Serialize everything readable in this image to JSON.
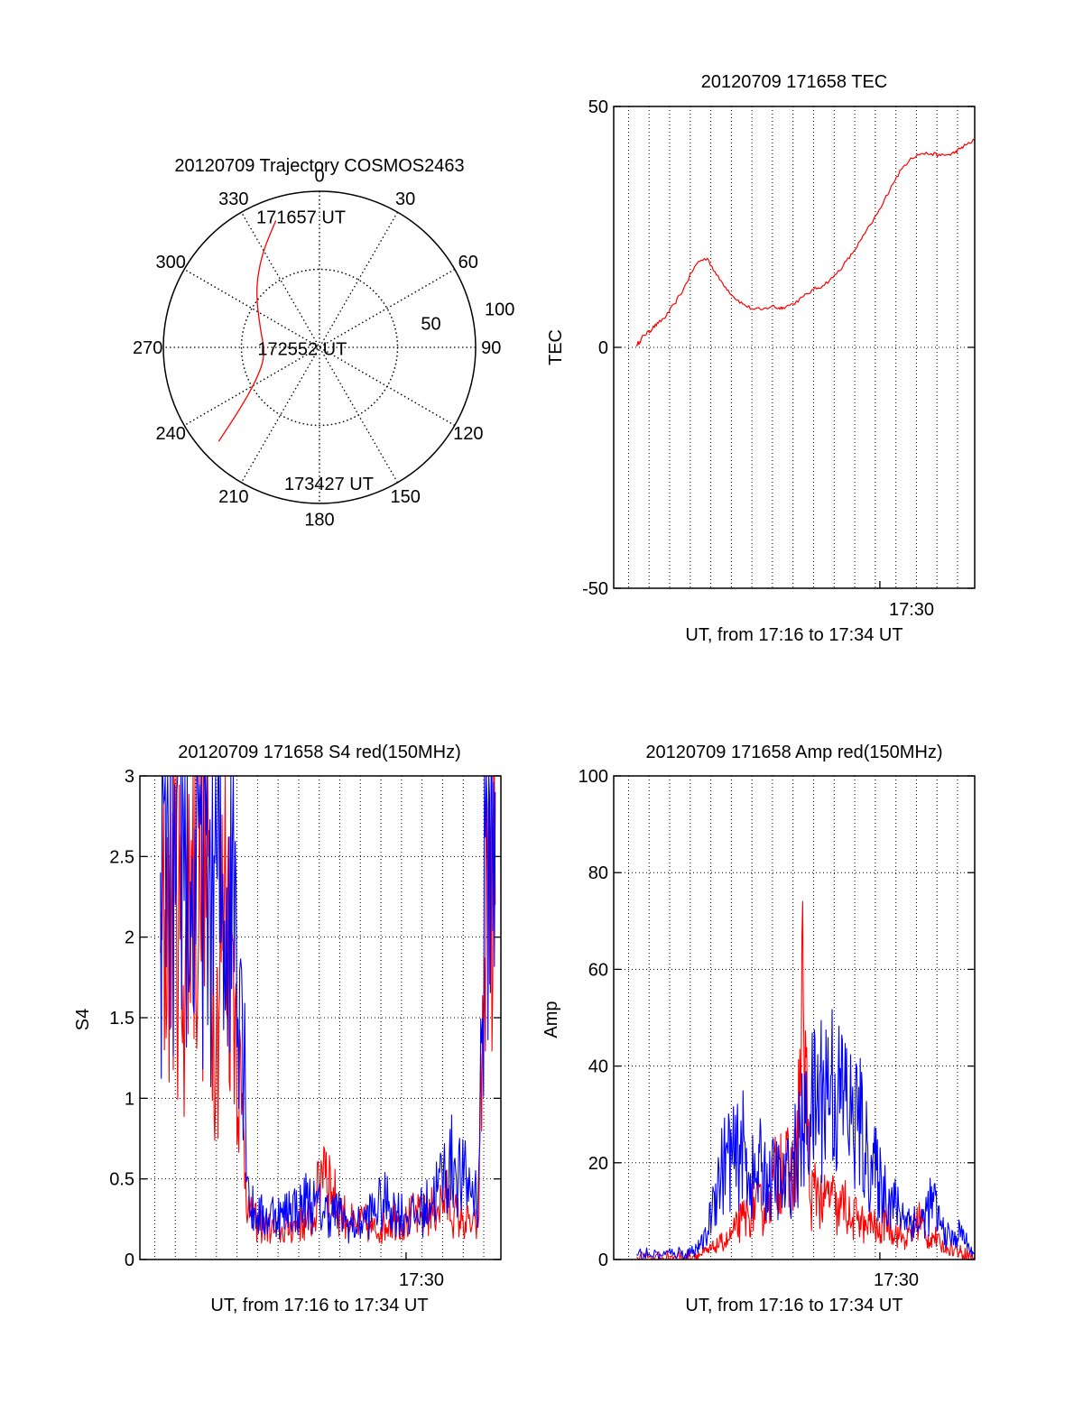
{
  "colors": {
    "red": "#ff0000",
    "blue": "#0000ff",
    "axis": "#000000",
    "grid": "#000000"
  },
  "chart_data": [
    {
      "id": "trajectory",
      "type": "polar",
      "title": "20120709 Trajectory COSMOS2463",
      "azimuth_labels": [
        "0",
        "30",
        "60",
        "90",
        "120",
        "150",
        "180",
        "210",
        "240",
        "270",
        "300",
        "330"
      ],
      "radial_labels": [
        {
          "elevation": 50,
          "label": "50"
        },
        {
          "elevation": 100,
          "label": "100"
        }
      ],
      "rings_elevation": [
        0,
        50
      ],
      "r_max": 100,
      "track": {
        "azimuth": [
          341,
          328,
          312,
          288,
          262,
          243,
          232,
          227
        ],
        "radius": [
          85.9,
          70,
          55,
          40,
          35,
          45,
          65,
          88.2
        ]
      },
      "point_labels": [
        {
          "text": "171657 UT",
          "azimuth": 352,
          "radius": 85
        },
        {
          "text": "172552 UT",
          "azimuth": 268,
          "radius": 5
        },
        {
          "text": "173427 UT",
          "azimuth": 176,
          "radius": 87
        }
      ]
    },
    {
      "id": "tec",
      "type": "line",
      "title": "20120709 171658 TEC",
      "ylabel": "TEC",
      "xlabel": "UT, from 17:16 to 17:34 UT",
      "xlim": [
        17.267,
        17.583
      ],
      "ylim": [
        -50,
        50
      ],
      "yticks": [
        -50,
        0,
        50
      ],
      "xtick_label": {
        "value": 17.5,
        "label": "17:30"
      },
      "vgrid_x": [
        17.28,
        17.298,
        17.316,
        17.334,
        17.352,
        17.37,
        17.388,
        17.406,
        17.424,
        17.442,
        17.46,
        17.478,
        17.496,
        17.514,
        17.532,
        17.55,
        17.568
      ],
      "series": [
        {
          "color": "#ff0000",
          "x": [
            17.287,
            17.29,
            17.293,
            17.298,
            17.301,
            17.306,
            17.313,
            17.32,
            17.328,
            17.335,
            17.341,
            17.349,
            17.357,
            17.365,
            17.372,
            17.38,
            17.388,
            17.397,
            17.406,
            17.411,
            17.415,
            17.424,
            17.433,
            17.442,
            17.45,
            17.459,
            17.468,
            17.476,
            17.484,
            17.492,
            17.501,
            17.51,
            17.519,
            17.527,
            17.536,
            17.545,
            17.553,
            17.561,
            17.566,
            17.57,
            17.575,
            17.583
          ],
          "y": [
            0.5,
            1.2,
            2.5,
            3.2,
            4,
            5,
            6.5,
            9,
            12,
            15.5,
            17.8,
            18.5,
            15,
            12.5,
            10.5,
            9,
            8,
            7.8,
            8.6,
            8.1,
            8.3,
            9,
            10.5,
            12,
            12.8,
            14.5,
            17,
            19.5,
            22.5,
            25.5,
            29,
            33.5,
            37,
            39.3,
            40.2,
            40.2,
            39.8,
            40,
            40.5,
            41.2,
            42,
            43
          ]
        }
      ]
    },
    {
      "id": "s4",
      "type": "line",
      "title": "20120709 171658 S4 red(150MHz)",
      "ylabel": "S4",
      "xlabel": "UT, from 17:16 to 17:34 UT",
      "xlim": [
        17.267,
        17.583
      ],
      "ylim": [
        0,
        3
      ],
      "yticks": [
        0,
        0.5,
        1,
        1.5,
        2,
        2.5,
        3
      ],
      "ytick_labels": [
        "0",
        "0.5",
        "1",
        "1.5",
        "2",
        "2.5",
        "3"
      ],
      "xtick_label": {
        "value": 17.5,
        "label": "17:30"
      },
      "vgrid_x": [
        17.28,
        17.298,
        17.316,
        17.334,
        17.352,
        17.37,
        17.388,
        17.406,
        17.424,
        17.442,
        17.46,
        17.478,
        17.496,
        17.514,
        17.532,
        17.55,
        17.568
      ],
      "series": [
        {
          "color": "#ff0000",
          "x": [
            17.285,
            17.292,
            17.298,
            17.305,
            17.312,
            17.32,
            17.327,
            17.334,
            17.341,
            17.348,
            17.356,
            17.363,
            17.37,
            17.377,
            17.385,
            17.392,
            17.399,
            17.406,
            17.413,
            17.42,
            17.428,
            17.435,
            17.442,
            17.449,
            17.456,
            17.464,
            17.471,
            17.478,
            17.485,
            17.492,
            17.499,
            17.507,
            17.514,
            17.521,
            17.528,
            17.535,
            17.542,
            17.549,
            17.556,
            17.563,
            17.571,
            17.578
          ],
          "y": [
            1.9,
            2.1,
            2.4,
            1.7,
            2.6,
            2.2,
            2.5,
            1.4,
            2.3,
            2.0,
            0.9,
            0.26,
            0.22,
            0.2,
            0.18,
            0.17,
            0.2,
            0.22,
            0.24,
            0.26,
            0.7,
            0.42,
            0.3,
            0.25,
            0.2,
            0.23,
            0.18,
            0.2,
            0.24,
            0.27,
            0.22,
            0.28,
            0.25,
            0.3,
            0.33,
            0.38,
            0.28,
            0.24,
            0.22,
            0.2,
            2.5,
            2.2
          ]
        },
        {
          "color": "#0000ff",
          "x": [
            17.285,
            17.292,
            17.298,
            17.305,
            17.312,
            17.32,
            17.327,
            17.334,
            17.341,
            17.348,
            17.356,
            17.363,
            17.37,
            17.377,
            17.385,
            17.392,
            17.399,
            17.406,
            17.413,
            17.42,
            17.428,
            17.435,
            17.442,
            17.449,
            17.456,
            17.464,
            17.471,
            17.478,
            17.485,
            17.492,
            17.499,
            17.507,
            17.514,
            17.521,
            17.528,
            17.535,
            17.542,
            17.549,
            17.556,
            17.563,
            17.571,
            17.578
          ],
          "y": [
            2.4,
            2.6,
            2.2,
            2.8,
            2.0,
            2.7,
            2.3,
            2.5,
            2.1,
            2.6,
            1.8,
            0.32,
            0.28,
            0.25,
            0.3,
            0.26,
            0.35,
            0.3,
            0.38,
            0.33,
            0.3,
            0.29,
            0.28,
            0.22,
            0.2,
            0.25,
            0.3,
            0.34,
            0.36,
            0.3,
            0.28,
            0.26,
            0.3,
            0.35,
            0.45,
            0.55,
            0.6,
            0.5,
            0.45,
            0.4,
            2.8,
            2.9
          ]
        }
      ]
    },
    {
      "id": "amp",
      "type": "line",
      "title": "20120709 171658 Amp red(150MHz)",
      "ylabel": "Amp",
      "xlabel": "UT, from 17:16 to 17:34 UT",
      "xlim": [
        17.267,
        17.583
      ],
      "ylim": [
        0,
        100
      ],
      "yticks": [
        0,
        20,
        40,
        60,
        80,
        100
      ],
      "xtick_label": {
        "value": 17.5,
        "label": "17:30"
      },
      "vgrid_x": [
        17.28,
        17.298,
        17.316,
        17.334,
        17.352,
        17.37,
        17.388,
        17.406,
        17.424,
        17.442,
        17.46,
        17.478,
        17.496,
        17.514,
        17.532,
        17.55,
        17.568
      ],
      "series": [
        {
          "color": "#ff0000",
          "x": [
            17.287,
            17.298,
            17.31,
            17.32,
            17.33,
            17.337,
            17.343,
            17.349,
            17.355,
            17.361,
            17.367,
            17.373,
            17.379,
            17.385,
            17.391,
            17.397,
            17.403,
            17.409,
            17.415,
            17.421,
            17.427,
            17.433,
            17.439,
            17.445,
            17.451,
            17.457,
            17.463,
            17.469,
            17.475,
            17.481,
            17.487,
            17.493,
            17.499,
            17.505,
            17.511,
            17.517,
            17.523,
            17.529,
            17.535,
            17.541,
            17.547,
            17.553,
            17.559,
            17.565,
            17.571,
            17.577,
            17.583
          ],
          "y": [
            0.5,
            0.5,
            0.4,
            0.6,
            0.5,
            0.8,
            1,
            1.5,
            2.5,
            3.5,
            4,
            6,
            8,
            9,
            12,
            10,
            14,
            17,
            22,
            16,
            20,
            53,
            12,
            15,
            11,
            14,
            9,
            12,
            7,
            10,
            6,
            8,
            5,
            9,
            6,
            5,
            4,
            6,
            9,
            4,
            5,
            3,
            2.5,
            2,
            1.5,
            1,
            0.5
          ]
        },
        {
          "color": "#0000ff",
          "x": [
            17.287,
            17.298,
            17.31,
            17.32,
            17.33,
            17.337,
            17.343,
            17.349,
            17.355,
            17.361,
            17.367,
            17.373,
            17.379,
            17.385,
            17.391,
            17.397,
            17.403,
            17.409,
            17.415,
            17.421,
            17.427,
            17.433,
            17.439,
            17.445,
            17.451,
            17.457,
            17.463,
            17.469,
            17.475,
            17.481,
            17.487,
            17.493,
            17.499,
            17.505,
            17.511,
            17.517,
            17.523,
            17.529,
            17.535,
            17.541,
            17.547,
            17.553,
            17.559,
            17.565,
            17.571,
            17.577,
            17.583
          ],
          "y": [
            1,
            1.2,
            0.8,
            1.5,
            1.2,
            2,
            3,
            5,
            14,
            18,
            22,
            20,
            24,
            18,
            16,
            20,
            15,
            18,
            14,
            18,
            22,
            26,
            30,
            33,
            36,
            38,
            32,
            35,
            28,
            30,
            22,
            20,
            16,
            14,
            12,
            10,
            9,
            8,
            7,
            10,
            12,
            7,
            5,
            4,
            6,
            3,
            1
          ]
        }
      ]
    }
  ]
}
